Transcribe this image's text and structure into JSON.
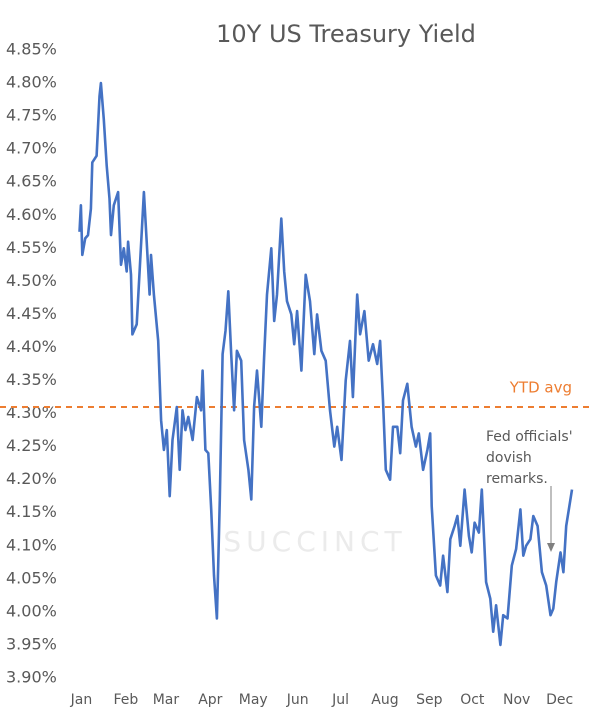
{
  "chart_data": {
    "type": "line",
    "title": "10Y US Treasury Yield",
    "color": "#4472c4",
    "x": [
      0,
      1,
      2,
      4,
      6,
      8,
      9,
      12,
      14,
      15,
      17,
      19,
      21,
      22,
      24,
      27,
      29,
      31,
      33,
      34,
      36,
      37,
      40,
      42,
      45,
      47,
      49,
      50,
      52,
      55,
      57,
      59,
      61,
      63,
      65,
      68,
      70,
      72,
      74,
      76,
      79,
      82,
      85,
      86,
      88,
      90,
      92,
      94,
      96,
      98,
      100,
      102,
      104,
      106,
      108,
      110,
      113,
      115,
      118,
      120,
      122,
      124,
      127,
      129,
      131,
      134,
      136,
      138,
      141,
      143,
      145,
      148,
      150,
      152,
      155,
      158,
      161,
      164,
      166,
      169,
      172,
      175,
      178,
      180,
      183,
      186,
      189,
      191,
      194,
      196,
      199,
      202,
      205,
      208,
      210,
      212,
      214,
      217,
      219,
      222,
      224,
      226,
      229,
      232,
      235,
      237,
      240,
      243,
      245,
      246,
      249,
      252,
      254,
      257,
      259,
      262,
      264,
      266,
      269,
      272,
      274,
      276,
      279,
      281,
      284,
      287,
      289,
      291,
      294,
      296,
      299,
      302,
      305,
      308,
      310,
      312,
      315,
      317,
      320,
      323,
      326,
      329,
      331,
      333,
      336,
      338,
      340,
      344
    ],
    "values": [
      4.575,
      4.615,
      4.54,
      4.565,
      4.57,
      4.61,
      4.68,
      4.69,
      4.78,
      4.8,
      4.745,
      4.675,
      4.625,
      4.57,
      4.615,
      4.635,
      4.525,
      4.55,
      4.515,
      4.56,
      4.51,
      4.42,
      4.435,
      4.515,
      4.635,
      4.56,
      4.48,
      4.54,
      4.48,
      4.41,
      4.29,
      4.245,
      4.275,
      4.175,
      4.26,
      4.31,
      4.215,
      4.305,
      4.275,
      4.295,
      4.26,
      4.325,
      4.305,
      4.365,
      4.245,
      4.24,
      4.155,
      4.055,
      3.99,
      4.17,
      4.39,
      4.425,
      4.485,
      4.39,
      4.305,
      4.395,
      4.38,
      4.26,
      4.215,
      4.17,
      4.31,
      4.365,
      4.28,
      4.385,
      4.48,
      4.55,
      4.44,
      4.48,
      4.595,
      4.515,
      4.47,
      4.45,
      4.405,
      4.455,
      4.365,
      4.51,
      4.47,
      4.39,
      4.45,
      4.395,
      4.38,
      4.305,
      4.25,
      4.28,
      4.23,
      4.35,
      4.41,
      4.325,
      4.48,
      4.42,
      4.455,
      4.38,
      4.405,
      4.375,
      4.41,
      4.32,
      4.215,
      4.2,
      4.28,
      4.28,
      4.24,
      4.32,
      4.345,
      4.28,
      4.25,
      4.27,
      4.215,
      4.245,
      4.27,
      4.16,
      4.055,
      4.04,
      4.085,
      4.03,
      4.11,
      4.13,
      4.145,
      4.1,
      4.185,
      4.115,
      4.09,
      4.135,
      4.12,
      4.185,
      4.045,
      4.02,
      3.97,
      4.01,
      3.95,
      3.995,
      3.99,
      4.07,
      4.095,
      4.155,
      4.085,
      4.1,
      4.11,
      4.145,
      4.13,
      4.06,
      4.04,
      3.995,
      4.005,
      4.045,
      4.09,
      4.06,
      4.13,
      4.185
    ],
    "xlim": [
      -8,
      358
    ],
    "xticks": [
      {
        "value": 0,
        "label": "Jan"
      },
      {
        "value": 31,
        "label": "Feb"
      },
      {
        "value": 59,
        "label": "Mar"
      },
      {
        "value": 90,
        "label": "Apr"
      },
      {
        "value": 120,
        "label": "May"
      },
      {
        "value": 151,
        "label": "Jun"
      },
      {
        "value": 181,
        "label": "Jul"
      },
      {
        "value": 212,
        "label": "Aug"
      },
      {
        "value": 243,
        "label": "Sep"
      },
      {
        "value": 273,
        "label": "Oct"
      },
      {
        "value": 304,
        "label": "Nov"
      },
      {
        "value": 334,
        "label": "Dec"
      }
    ],
    "ylim": [
      3.9,
      4.85
    ],
    "yticks": [
      {
        "value": 3.9,
        "label": "3.90%"
      },
      {
        "value": 3.95,
        "label": "3.95%"
      },
      {
        "value": 4.0,
        "label": "4.00%"
      },
      {
        "value": 4.05,
        "label": "4.05%"
      },
      {
        "value": 4.1,
        "label": "4.10%"
      },
      {
        "value": 4.15,
        "label": "4.15%"
      },
      {
        "value": 4.2,
        "label": "4.20%"
      },
      {
        "value": 4.25,
        "label": "4.25%"
      },
      {
        "value": 4.3,
        "label": "4.30%"
      },
      {
        "value": 4.35,
        "label": "4.35%"
      },
      {
        "value": 4.4,
        "label": "4.40%"
      },
      {
        "value": 4.45,
        "label": "4.45%"
      },
      {
        "value": 4.5,
        "label": "4.50%"
      },
      {
        "value": 4.55,
        "label": "4.55%"
      },
      {
        "value": 4.6,
        "label": "4.60%"
      },
      {
        "value": 4.65,
        "label": "4.65%"
      },
      {
        "value": 4.7,
        "label": "4.70%"
      },
      {
        "value": 4.75,
        "label": "4.75%"
      },
      {
        "value": 4.8,
        "label": "4.80%"
      },
      {
        "value": 4.85,
        "label": "4.85%"
      }
    ],
    "reference_line": {
      "value": 4.31,
      "label": "YTD avg",
      "color": "#ed7d31"
    },
    "annotation": [
      "Fed officials'",
      "dovish",
      "remarks."
    ],
    "watermark": "SUCCINCT"
  }
}
